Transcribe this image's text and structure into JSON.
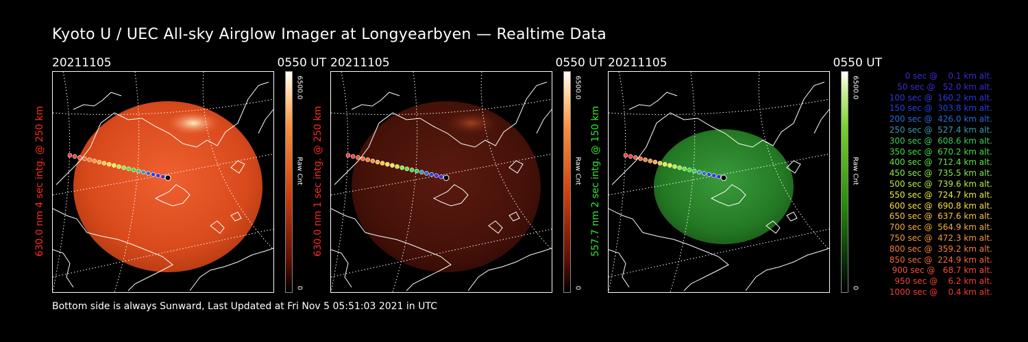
{
  "title": "Kyoto U / UEC All-sky Airglow Imager at Longyearbyen — Realtime Data",
  "footer": "Bottom side is always Sunward, Last Updated at Fri Nov  5 05:51:03 2021 in UTC",
  "panels": [
    {
      "date": "20211105",
      "time": "0550 UT",
      "ylabel": "630.0 nm 4 sec intg. @ 250 km",
      "label_color": "#ff2a1a",
      "cbar_max": "6500.0",
      "cbar_unit": "Raw Cnt",
      "cbar_min": "0",
      "colormap": "red",
      "brightness": 1.0
    },
    {
      "date": "20211105",
      "time": "0550 UT",
      "ylabel": "630.0 nm 1 sec intg. @ 250 km",
      "label_color": "#ff2a1a",
      "cbar_max": "6500.0",
      "cbar_unit": "Raw Cnt",
      "cbar_min": "0",
      "colormap": "red",
      "brightness": 0.32
    },
    {
      "date": "20211105",
      "time": "0550 UT",
      "ylabel": "557.7 nm 2 sec intg. @ 150 km",
      "label_color": "#2ee82e",
      "cbar_max": "6500.0",
      "cbar_unit": "Raw Cnt",
      "cbar_min": "0",
      "colormap": "green",
      "brightness": 1.0
    }
  ],
  "legend": [
    {
      "text": "   0 sec @    0.1 km alt.",
      "color": "#3a2ad8"
    },
    {
      "text": "  50 sec @   52.0 km alt.",
      "color": "#3a2ad8"
    },
    {
      "text": " 100 sec @  160.2 km alt.",
      "color": "#2b3ae0"
    },
    {
      "text": " 150 sec @  303.8 km alt.",
      "color": "#2440e4"
    },
    {
      "text": " 200 sec @  426.0 km alt.",
      "color": "#2a6adc"
    },
    {
      "text": " 250 sec @  527.4 km alt.",
      "color": "#3a9ab0"
    },
    {
      "text": " 300 sec @  608.6 km alt.",
      "color": "#3ad060"
    },
    {
      "text": " 350 sec @  670.2 km alt.",
      "color": "#40e040"
    },
    {
      "text": " 400 sec @  712.4 km alt.",
      "color": "#5ee83a"
    },
    {
      "text": " 450 sec @  735.5 km alt.",
      "color": "#8aee3a"
    },
    {
      "text": " 500 sec @  739.6 km alt.",
      "color": "#bcf03a"
    },
    {
      "text": " 550 sec @  724.7 km alt.",
      "color": "#e8f03a"
    },
    {
      "text": " 600 sec @  690.8 km alt.",
      "color": "#f8e038"
    },
    {
      "text": " 650 sec @  637.6 km alt.",
      "color": "#f8c838"
    },
    {
      "text": " 700 sec @  564.9 km alt.",
      "color": "#f8b038"
    },
    {
      "text": " 750 sec @  472.3 km alt.",
      "color": "#f89838"
    },
    {
      "text": " 800 sec @  359.2 km alt.",
      "color": "#f88038"
    },
    {
      "text": " 850 sec @  224.9 km alt.",
      "color": "#f86a38"
    },
    {
      "text": " 900 sec @   68.7 km alt.",
      "color": "#f85038"
    },
    {
      "text": " 950 sec @    6.2 km alt.",
      "color": "#f84038"
    },
    {
      "text": "1000 sec @    0.4 km alt.",
      "color": "#f83838"
    }
  ]
}
